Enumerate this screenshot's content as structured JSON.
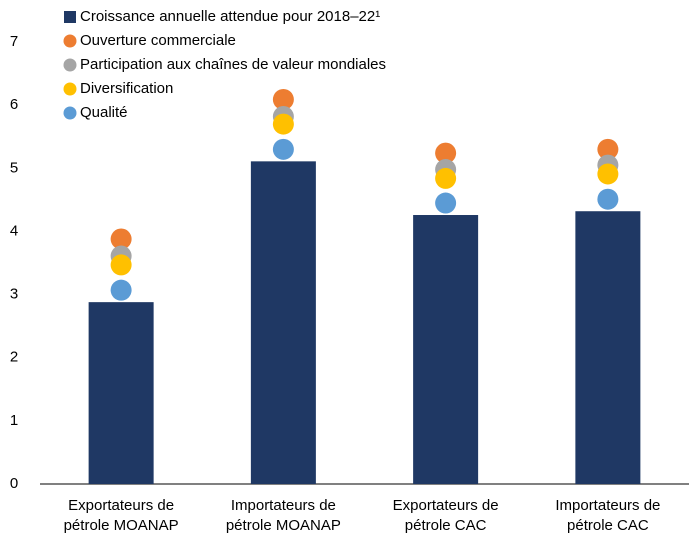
{
  "chart_data": {
    "type": "bar",
    "categories": [
      [
        "Exportateurs de",
        "pétrole MOANAP"
      ],
      [
        "Importateurs de",
        "pétrole MOANAP"
      ],
      [
        "Exportateurs de",
        "pétrole CAC"
      ],
      [
        "Importateurs de",
        "pétrole CAC"
      ]
    ],
    "series": [
      {
        "name": "Croissance annuelle attendue pour 2018–22¹",
        "type": "bar",
        "color": "#1f3864",
        "values": [
          2.88,
          5.11,
          4.26,
          4.32
        ]
      },
      {
        "name": "Ouverture commerciale",
        "type": "scatter",
        "color": "#ed7d31",
        "values": [
          3.88,
          6.09,
          5.24,
          5.3
        ]
      },
      {
        "name": "Participation aux chaînes de valeur mondiales",
        "type": "scatter",
        "color": "#a5a5a5",
        "values": [
          3.61,
          5.82,
          4.98,
          5.05
        ]
      },
      {
        "name": "Diversification",
        "type": "scatter",
        "color": "#ffc000",
        "values": [
          3.47,
          5.7,
          4.84,
          4.91
        ]
      },
      {
        "name": "Qualité",
        "type": "scatter",
        "color": "#5b9bd5",
        "values": [
          3.07,
          5.3,
          4.45,
          4.51
        ]
      }
    ],
    "ylim": [
      0,
      7
    ],
    "yticks": [
      0,
      1,
      2,
      3,
      4,
      5,
      6,
      7
    ],
    "grid": false
  }
}
